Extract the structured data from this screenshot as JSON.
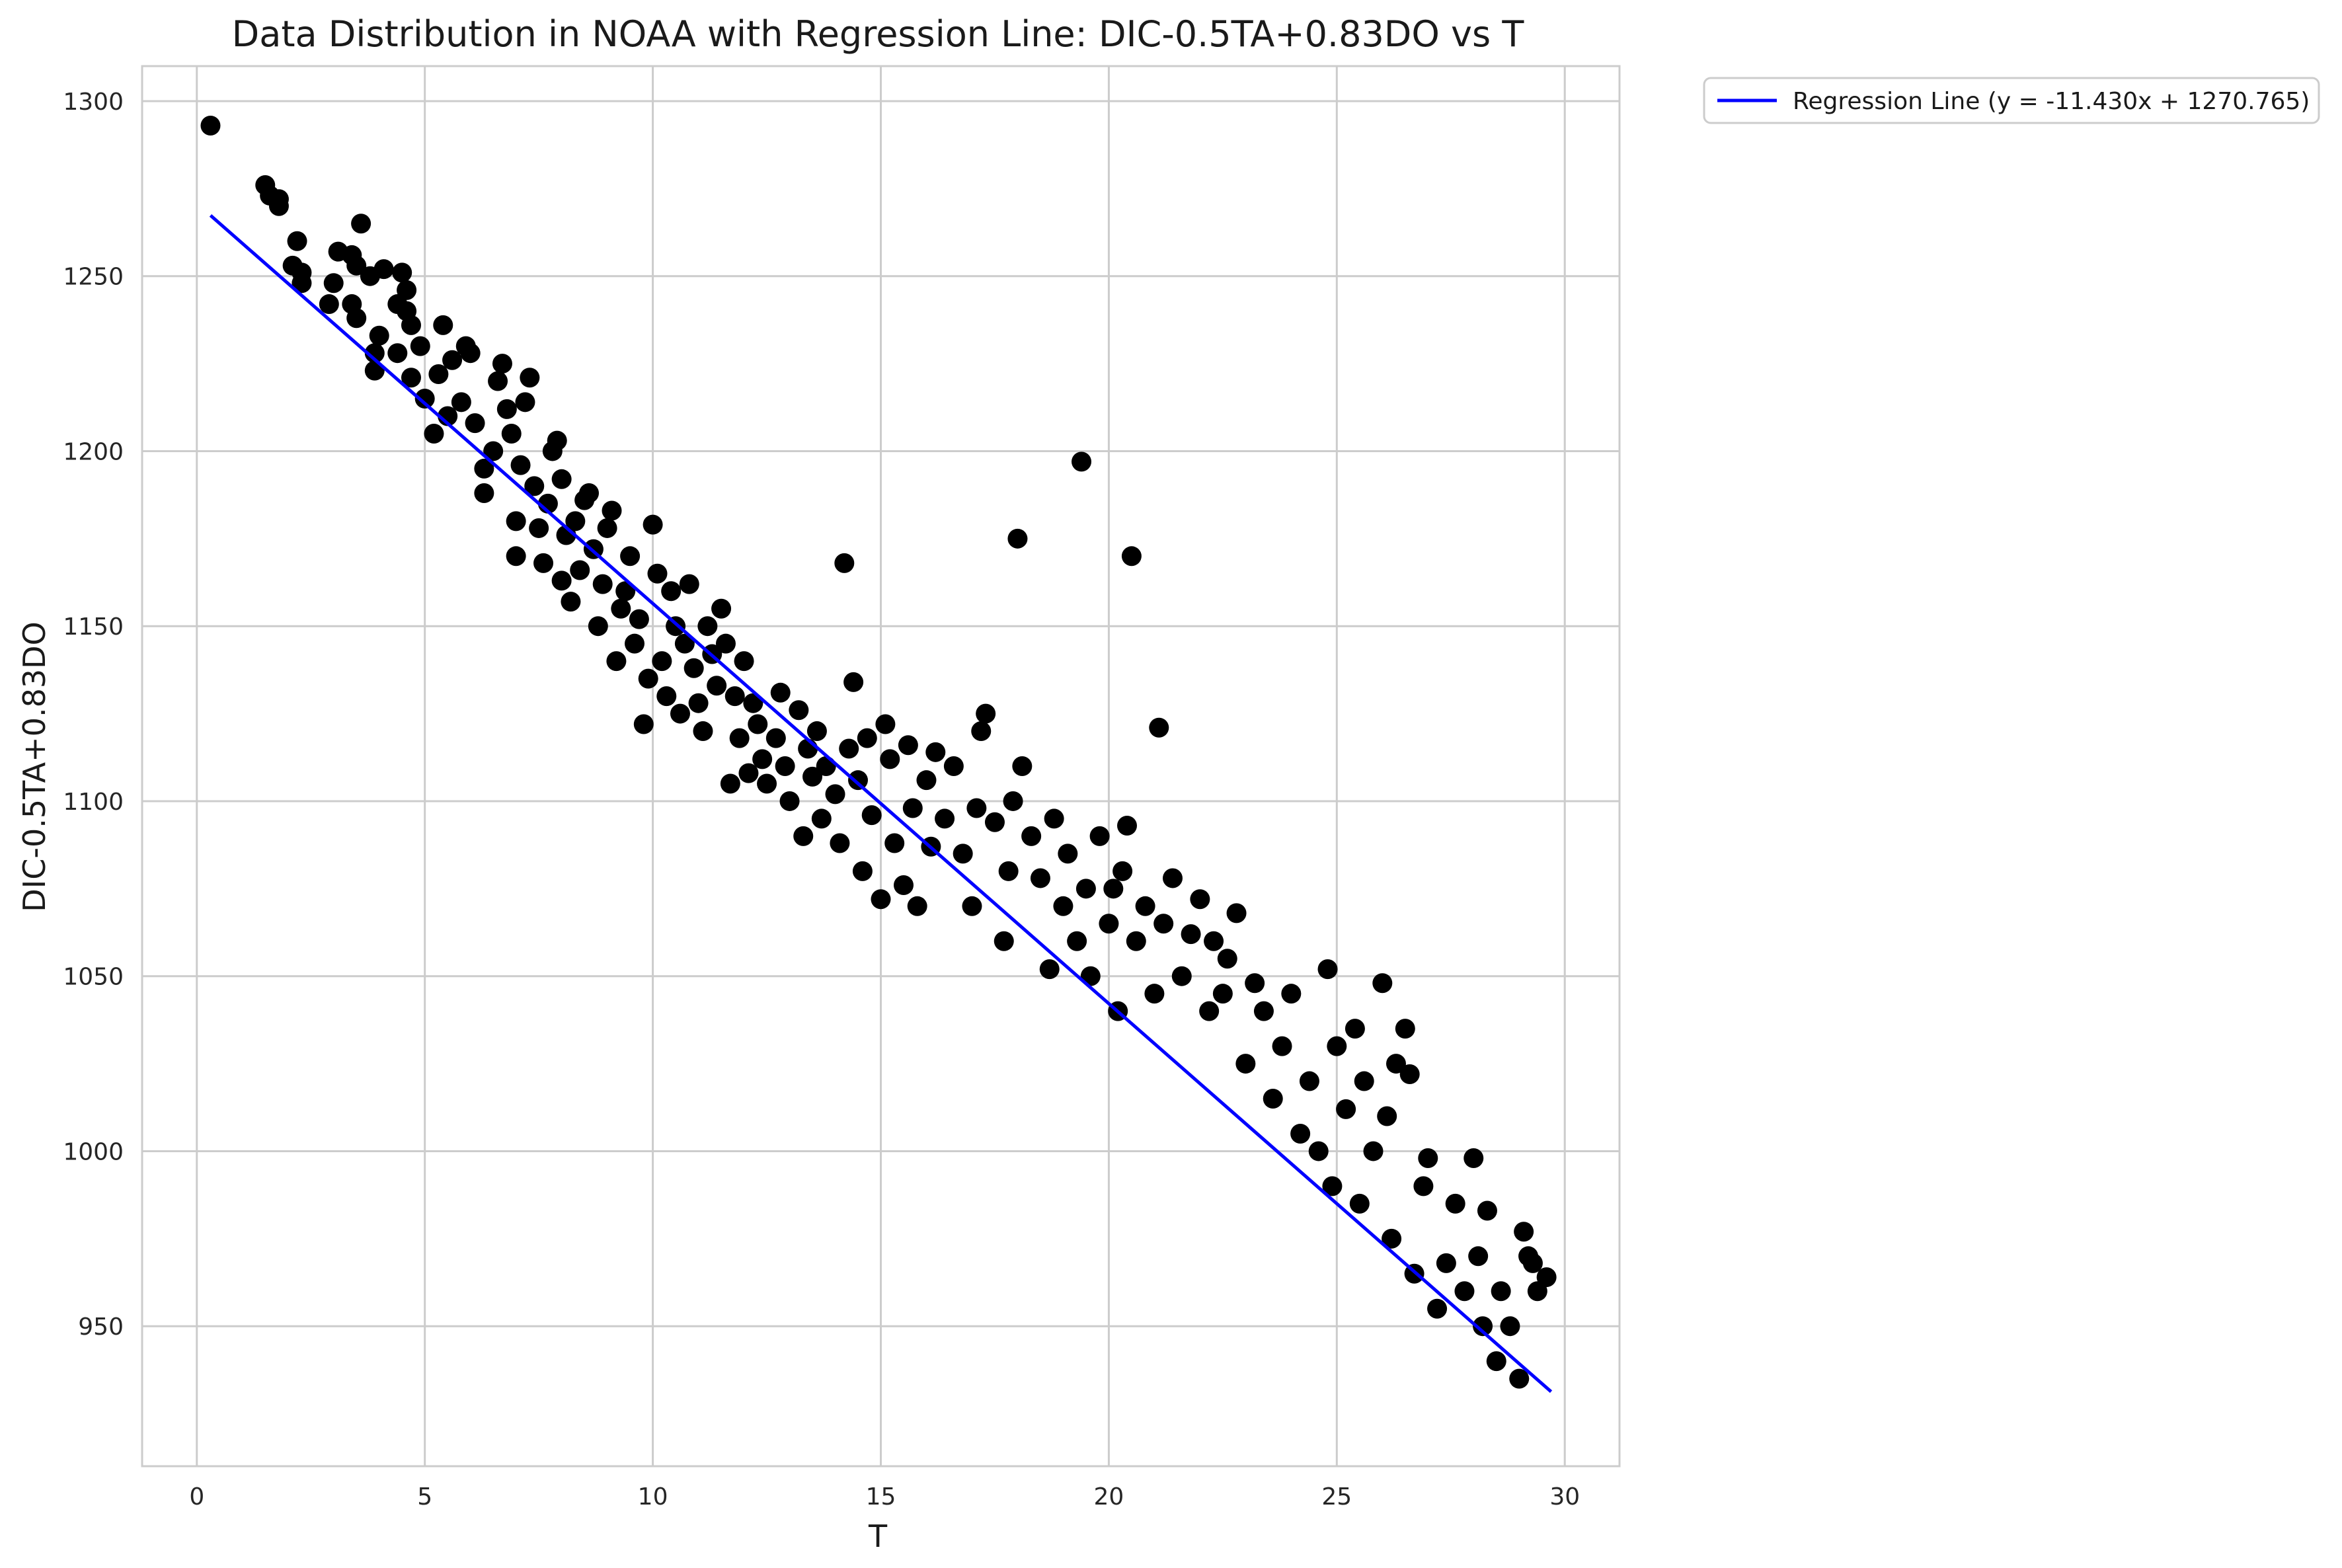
{
  "chart_data": {
    "type": "scatter",
    "title": "Data Distribution in NOAA with Regression Line: DIC-0.5TA+0.83DO vs T",
    "xlabel": "T",
    "ylabel": "DIC-0.5TA+0.83DO",
    "xlim": [
      -1.2,
      31.2
    ],
    "ylim": [
      910,
      1310
    ],
    "xticks": [
      0,
      5,
      10,
      15,
      20,
      25,
      30
    ],
    "yticks": [
      950,
      1000,
      1050,
      1100,
      1150,
      1200,
      1250,
      1300
    ],
    "xtick_labels": [
      "0",
      "5",
      "10",
      "15",
      "20",
      "25",
      "30"
    ],
    "ytick_labels": [
      "950",
      "1000",
      "1050",
      "1100",
      "1150",
      "1200",
      "1250",
      "1300"
    ],
    "grid": true,
    "legend_position": "outside-top-right",
    "marker_color": "#000000",
    "line_color": "#0000ff",
    "regression": {
      "name": "Regression Line (y = -11.430x + 1270.765)",
      "slope": -11.43,
      "intercept": 1270.765,
      "x_range": [
        0.3,
        29.7
      ]
    },
    "series": [
      {
        "points": [
          [
            0.3,
            1293
          ],
          [
            1.5,
            1276
          ],
          [
            1.6,
            1273
          ],
          [
            1.8,
            1272
          ],
          [
            1.8,
            1270
          ],
          [
            2.2,
            1260
          ],
          [
            2.1,
            1253
          ],
          [
            2.3,
            1251
          ],
          [
            2.3,
            1248
          ],
          [
            2.9,
            1242
          ],
          [
            3.0,
            1248
          ],
          [
            3.1,
            1257
          ],
          [
            3.4,
            1256
          ],
          [
            3.5,
            1253
          ],
          [
            3.6,
            1265
          ],
          [
            3.4,
            1242
          ],
          [
            3.5,
            1238
          ],
          [
            3.8,
            1250
          ],
          [
            3.9,
            1223
          ],
          [
            3.9,
            1228
          ],
          [
            4.0,
            1233
          ],
          [
            4.1,
            1252
          ],
          [
            4.4,
            1242
          ],
          [
            4.5,
            1251
          ],
          [
            4.6,
            1246
          ],
          [
            4.6,
            1240
          ],
          [
            4.4,
            1228
          ],
          [
            4.7,
            1236
          ],
          [
            4.7,
            1221
          ],
          [
            4.9,
            1230
          ],
          [
            5.0,
            1215
          ],
          [
            5.2,
            1205
          ],
          [
            5.3,
            1222
          ],
          [
            5.4,
            1236
          ],
          [
            5.5,
            1210
          ],
          [
            5.6,
            1226
          ],
          [
            5.8,
            1214
          ],
          [
            5.9,
            1230
          ],
          [
            6.0,
            1228
          ],
          [
            6.1,
            1208
          ],
          [
            6.3,
            1195
          ],
          [
            6.3,
            1188
          ],
          [
            6.5,
            1200
          ],
          [
            6.6,
            1220
          ],
          [
            6.7,
            1225
          ],
          [
            6.8,
            1212
          ],
          [
            6.9,
            1205
          ],
          [
            7.0,
            1170
          ],
          [
            7.0,
            1180
          ],
          [
            7.1,
            1196
          ],
          [
            7.2,
            1214
          ],
          [
            7.3,
            1221
          ],
          [
            7.4,
            1190
          ],
          [
            7.5,
            1178
          ],
          [
            7.6,
            1168
          ],
          [
            7.7,
            1185
          ],
          [
            7.8,
            1200
          ],
          [
            7.9,
            1203
          ],
          [
            8.0,
            1192
          ],
          [
            8.0,
            1163
          ],
          [
            8.1,
            1176
          ],
          [
            8.2,
            1157
          ],
          [
            8.3,
            1180
          ],
          [
            8.4,
            1166
          ],
          [
            8.5,
            1186
          ],
          [
            8.6,
            1188
          ],
          [
            8.7,
            1172
          ],
          [
            8.8,
            1150
          ],
          [
            8.9,
            1162
          ],
          [
            9.0,
            1178
          ],
          [
            9.1,
            1183
          ],
          [
            9.2,
            1140
          ],
          [
            9.3,
            1155
          ],
          [
            9.4,
            1160
          ],
          [
            9.5,
            1170
          ],
          [
            9.6,
            1145
          ],
          [
            9.7,
            1152
          ],
          [
            9.8,
            1122
          ],
          [
            9.9,
            1135
          ],
          [
            10.0,
            1179
          ],
          [
            10.1,
            1165
          ],
          [
            10.2,
            1140
          ],
          [
            10.3,
            1130
          ],
          [
            10.4,
            1160
          ],
          [
            10.5,
            1150
          ],
          [
            10.6,
            1125
          ],
          [
            10.7,
            1145
          ],
          [
            10.8,
            1162
          ],
          [
            10.9,
            1138
          ],
          [
            11.0,
            1128
          ],
          [
            11.1,
            1120
          ],
          [
            11.2,
            1150
          ],
          [
            11.3,
            1142
          ],
          [
            11.4,
            1133
          ],
          [
            11.5,
            1155
          ],
          [
            11.6,
            1145
          ],
          [
            11.7,
            1105
          ],
          [
            11.8,
            1130
          ],
          [
            11.9,
            1118
          ],
          [
            12.0,
            1140
          ],
          [
            12.1,
            1108
          ],
          [
            12.2,
            1128
          ],
          [
            12.3,
            1122
          ],
          [
            12.4,
            1112
          ],
          [
            12.5,
            1105
          ],
          [
            12.7,
            1118
          ],
          [
            12.8,
            1131
          ],
          [
            12.9,
            1110
          ],
          [
            13.0,
            1100
          ],
          [
            13.2,
            1126
          ],
          [
            13.3,
            1090
          ],
          [
            13.4,
            1115
          ],
          [
            13.5,
            1107
          ],
          [
            13.6,
            1120
          ],
          [
            13.7,
            1095
          ],
          [
            13.8,
            1110
          ],
          [
            14.0,
            1102
          ],
          [
            14.1,
            1088
          ],
          [
            14.2,
            1168
          ],
          [
            14.3,
            1115
          ],
          [
            14.4,
            1134
          ],
          [
            14.5,
            1106
          ],
          [
            14.6,
            1080
          ],
          [
            14.7,
            1118
          ],
          [
            14.8,
            1096
          ],
          [
            15.0,
            1072
          ],
          [
            15.1,
            1122
          ],
          [
            15.2,
            1112
          ],
          [
            15.3,
            1088
          ],
          [
            15.5,
            1076
          ],
          [
            15.6,
            1116
          ],
          [
            15.7,
            1098
          ],
          [
            15.8,
            1070
          ],
          [
            16.0,
            1106
          ],
          [
            16.1,
            1087
          ],
          [
            16.2,
            1114
          ],
          [
            16.4,
            1095
          ],
          [
            16.6,
            1110
          ],
          [
            16.8,
            1085
          ],
          [
            17.0,
            1070
          ],
          [
            17.1,
            1098
          ],
          [
            17.2,
            1120
          ],
          [
            17.3,
            1125
          ],
          [
            17.5,
            1094
          ],
          [
            17.7,
            1060
          ],
          [
            17.8,
            1080
          ],
          [
            17.9,
            1100
          ],
          [
            18.0,
            1175
          ],
          [
            18.1,
            1110
          ],
          [
            18.3,
            1090
          ],
          [
            18.5,
            1078
          ],
          [
            18.7,
            1052
          ],
          [
            18.8,
            1095
          ],
          [
            19.0,
            1070
          ],
          [
            19.1,
            1085
          ],
          [
            19.3,
            1060
          ],
          [
            19.4,
            1197
          ],
          [
            19.5,
            1075
          ],
          [
            19.6,
            1050
          ],
          [
            19.8,
            1090
          ],
          [
            20.0,
            1065
          ],
          [
            20.1,
            1075
          ],
          [
            20.2,
            1040
          ],
          [
            20.3,
            1080
          ],
          [
            20.4,
            1093
          ],
          [
            20.5,
            1170
          ],
          [
            20.6,
            1060
          ],
          [
            20.8,
            1070
          ],
          [
            21.0,
            1045
          ],
          [
            21.1,
            1121
          ],
          [
            21.2,
            1065
          ],
          [
            21.4,
            1078
          ],
          [
            21.6,
            1050
          ],
          [
            21.8,
            1062
          ],
          [
            22.0,
            1072
          ],
          [
            22.2,
            1040
          ],
          [
            22.3,
            1060
          ],
          [
            22.5,
            1045
          ],
          [
            22.6,
            1055
          ],
          [
            22.8,
            1068
          ],
          [
            23.0,
            1025
          ],
          [
            23.2,
            1048
          ],
          [
            23.4,
            1040
          ],
          [
            23.6,
            1015
          ],
          [
            23.8,
            1030
          ],
          [
            24.0,
            1045
          ],
          [
            24.2,
            1005
          ],
          [
            24.4,
            1020
          ],
          [
            24.6,
            1000
          ],
          [
            24.8,
            1052
          ],
          [
            24.9,
            990
          ],
          [
            25.0,
            1030
          ],
          [
            25.2,
            1012
          ],
          [
            25.4,
            1035
          ],
          [
            25.5,
            985
          ],
          [
            25.6,
            1020
          ],
          [
            25.8,
            1000
          ],
          [
            26.0,
            1048
          ],
          [
            26.1,
            1010
          ],
          [
            26.2,
            975
          ],
          [
            26.3,
            1025
          ],
          [
            26.5,
            1035
          ],
          [
            26.6,
            1022
          ],
          [
            26.7,
            965
          ],
          [
            26.9,
            990
          ],
          [
            27.0,
            998
          ],
          [
            27.2,
            955
          ],
          [
            27.4,
            968
          ],
          [
            27.6,
            985
          ],
          [
            27.8,
            960
          ],
          [
            28.0,
            998
          ],
          [
            28.1,
            970
          ],
          [
            28.2,
            950
          ],
          [
            28.3,
            983
          ],
          [
            28.5,
            940
          ],
          [
            28.6,
            960
          ],
          [
            28.8,
            950
          ],
          [
            29.0,
            935
          ],
          [
            29.1,
            977
          ],
          [
            29.2,
            970
          ],
          [
            29.3,
            968
          ],
          [
            29.4,
            960
          ],
          [
            29.6,
            964
          ]
        ]
      }
    ]
  }
}
